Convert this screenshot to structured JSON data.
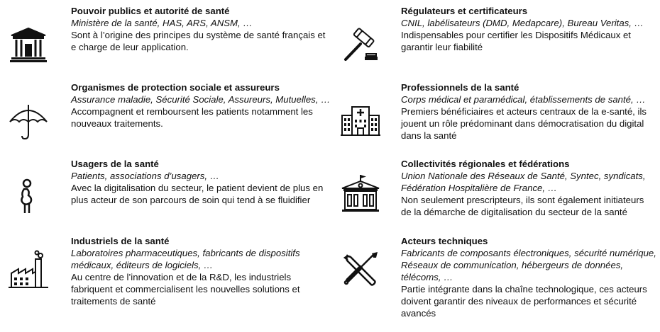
{
  "blocks": [
    {
      "id": "pouvoirs-publics",
      "icon": "government-building-icon",
      "title": "Pouvoir publics et autorité de santé",
      "examples": "Ministère de la santé, HAS, ARS, ANSM, …",
      "description": "Sont à l’origine des principes du système de santé français et\ne charge de leur application."
    },
    {
      "id": "regulateurs",
      "icon": "gavel-icon",
      "title": "Régulateurs et certificateurs",
      "examples": "CNIL, labélisateurs (DMD, Medapcare), Bureau Veritas, …",
      "description": "Indispensables pour certifier les Dispositifs Médicaux et\ngarantir leur fiabilité"
    },
    {
      "id": "protection-sociale",
      "icon": "umbrella-icon",
      "title": "Organismes de protection sociale et assureurs",
      "examples": "Assurance maladie, Sécurité Sociale, Assureurs, Mutuelles, …",
      "description": "Accompagnent et remboursent les patients notamment les\nnouveaux traitements."
    },
    {
      "id": "professionnels",
      "icon": "hospital-icon",
      "title": "Professionnels de la santé",
      "examples": "Corps médical et paramédical, établissements de santé, …",
      "description": "Premiers bénéficiaires et acteurs centraux de la e-santé, ils\njouent un rôle prédominant dans  démocratisation du digital\ndans la santé"
    },
    {
      "id": "usagers",
      "icon": "pregnant-person-icon",
      "title": "Usagers de la santé",
      "examples": "Patients, associations d’usagers, …",
      "description": "Avec la digitalisation du secteur, le patient devient de plus en\nplus acteur de son parcours de soin qui tend à se fluidifier"
    },
    {
      "id": "collectivites",
      "icon": "town-hall-icon",
      "title": "Collectivités régionales et fédérations",
      "examples": "Union Nationale des Réseaux de Santé, Syntec, syndicats,\nFédération Hospitalière de France, …",
      "description": "Non seulement prescripteurs, ils sont également initiateurs\nde la démarche de digitalisation du secteur de la santé"
    },
    {
      "id": "industriels",
      "icon": "factory-icon",
      "title": "Industriels de la santé",
      "examples": "Laboratoires pharmaceutiques, fabricants de dispositifs\nmédicaux, éditeurs de logiciels, …",
      "description": "Au centre de l’innovation et de la R&D, les industriels\nfabriquent et commercialisent les nouvelles solutions et\ntraitements de santé"
    },
    {
      "id": "acteurs-techniques",
      "icon": "tools-icon",
      "title": "Acteurs techniques",
      "examples": "Fabricants de composants électroniques, sécurité numérique,\nRéseaux de communication, hébergeurs de données,\ntélécoms, …",
      "description": "Partie intégrante dans la chaîne technologique, ces acteurs\ndoivent garantir des niveaux de performances et sécurité\navancés"
    }
  ]
}
